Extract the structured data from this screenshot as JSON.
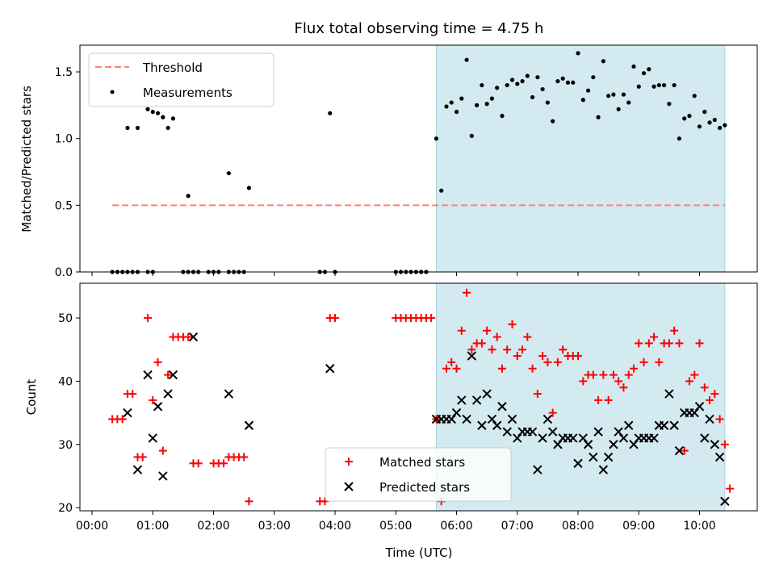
{
  "chart_data": {
    "title": "Flux total observing time = 4.75 h",
    "xlabel": "Time (UTC)",
    "x_ticks": [
      "00:00",
      "01:00",
      "02:00",
      "03:00",
      "04:00",
      "05:00",
      "06:00",
      "07:00",
      "08:00",
      "09:00",
      "10:00"
    ],
    "x_range": [
      "23:48",
      "10:57"
    ],
    "shaded_interval": [
      "05:40",
      "10:25"
    ],
    "shade_color": "#d4eaf1",
    "top": {
      "type": "scatter",
      "ylabel": "Matched/Predicted stars",
      "ylim": [
        0,
        1.7
      ],
      "yticks": [
        "0.0",
        "0.5",
        "1.0",
        "1.5"
      ],
      "legend": {
        "placement": "top-left",
        "entries": [
          "Threshold",
          "Measurements"
        ]
      },
      "threshold": {
        "name": "Threshold",
        "value": 0.5,
        "x_start": "00:20",
        "x_end": "10:25",
        "color": "#ff7f7f"
      },
      "measurements": {
        "name": "Measurements",
        "color": "#000000",
        "points": [
          [
            "00:20",
            0
          ],
          [
            "00:25",
            0
          ],
          [
            "00:30",
            0
          ],
          [
            "00:35",
            0
          ],
          [
            "00:40",
            0
          ],
          [
            "00:45",
            0
          ],
          [
            "00:55",
            0
          ],
          [
            "01:00",
            0
          ],
          [
            "01:30",
            0
          ],
          [
            "01:35",
            0
          ],
          [
            "01:40",
            0
          ],
          [
            "01:45",
            0
          ],
          [
            "01:55",
            0
          ],
          [
            "02:00",
            0
          ],
          [
            "02:05",
            0
          ],
          [
            "02:15",
            0
          ],
          [
            "02:20",
            0
          ],
          [
            "02:25",
            0
          ],
          [
            "02:30",
            0
          ],
          [
            "03:45",
            0
          ],
          [
            "03:50",
            0
          ],
          [
            "04:00",
            0
          ],
          [
            "05:00",
            0
          ],
          [
            "05:05",
            0
          ],
          [
            "05:10",
            0
          ],
          [
            "05:15",
            0
          ],
          [
            "05:20",
            0
          ],
          [
            "05:25",
            0
          ],
          [
            "05:30",
            0
          ],
          [
            "00:35",
            1.08
          ],
          [
            "00:45",
            1.08
          ],
          [
            "00:55",
            1.22
          ],
          [
            "01:00",
            1.2
          ],
          [
            "01:05",
            1.19
          ],
          [
            "01:10",
            1.16
          ],
          [
            "01:15",
            1.08
          ],
          [
            "01:20",
            1.15
          ],
          [
            "01:35",
            0.57
          ],
          [
            "02:15",
            0.74
          ],
          [
            "02:35",
            0.63
          ],
          [
            "03:55",
            1.19
          ],
          [
            "05:40",
            1.0
          ],
          [
            "05:45",
            0.61
          ],
          [
            "05:50",
            1.24
          ],
          [
            "05:55",
            1.27
          ],
          [
            "06:00",
            1.2
          ],
          [
            "06:05",
            1.3
          ],
          [
            "06:10",
            1.59
          ],
          [
            "06:15",
            1.02
          ],
          [
            "06:20",
            1.25
          ],
          [
            "06:25",
            1.4
          ],
          [
            "06:30",
            1.26
          ],
          [
            "06:35",
            1.3
          ],
          [
            "06:40",
            1.38
          ],
          [
            "06:45",
            1.17
          ],
          [
            "06:50",
            1.4
          ],
          [
            "06:55",
            1.44
          ],
          [
            "07:00",
            1.41
          ],
          [
            "07:05",
            1.43
          ],
          [
            "07:10",
            1.47
          ],
          [
            "07:15",
            1.31
          ],
          [
            "07:20",
            1.46
          ],
          [
            "07:25",
            1.37
          ],
          [
            "07:30",
            1.27
          ],
          [
            "07:35",
            1.13
          ],
          [
            "07:40",
            1.43
          ],
          [
            "07:45",
            1.45
          ],
          [
            "07:50",
            1.42
          ],
          [
            "07:55",
            1.42
          ],
          [
            "08:00",
            1.64
          ],
          [
            "08:05",
            1.29
          ],
          [
            "08:10",
            1.36
          ],
          [
            "08:15",
            1.46
          ],
          [
            "08:20",
            1.16
          ],
          [
            "08:25",
            1.58
          ],
          [
            "08:30",
            1.32
          ],
          [
            "08:35",
            1.33
          ],
          [
            "08:40",
            1.22
          ],
          [
            "08:45",
            1.33
          ],
          [
            "08:50",
            1.27
          ],
          [
            "08:55",
            1.54
          ],
          [
            "09:00",
            1.39
          ],
          [
            "09:05",
            1.49
          ],
          [
            "09:10",
            1.52
          ],
          [
            "09:15",
            1.39
          ],
          [
            "09:20",
            1.4
          ],
          [
            "09:25",
            1.4
          ],
          [
            "09:30",
            1.26
          ],
          [
            "09:35",
            1.4
          ],
          [
            "09:40",
            1.0
          ],
          [
            "09:45",
            1.15
          ],
          [
            "09:50",
            1.17
          ],
          [
            "09:55",
            1.32
          ],
          [
            "10:00",
            1.09
          ],
          [
            "10:05",
            1.2
          ],
          [
            "10:10",
            1.12
          ],
          [
            "10:15",
            1.14
          ],
          [
            "10:20",
            1.08
          ],
          [
            "10:25",
            1.1
          ]
        ]
      }
    },
    "bottom": {
      "type": "scatter",
      "ylabel": "Count",
      "ylim": [
        19.5,
        55.5
      ],
      "yticks": [
        "20",
        "30",
        "40",
        "50"
      ],
      "legend": {
        "placement": "lower-center",
        "entries": [
          "Matched stars",
          "Predicted stars"
        ]
      },
      "matched": {
        "name": "Matched stars",
        "color": "#ff0000",
        "marker": "plus",
        "points": [
          [
            "00:20",
            34
          ],
          [
            "00:25",
            34
          ],
          [
            "00:30",
            34
          ],
          [
            "00:35",
            38
          ],
          [
            "00:40",
            38
          ],
          [
            "00:45",
            28
          ],
          [
            "00:50",
            28
          ],
          [
            "00:55",
            50
          ],
          [
            "01:00",
            37
          ],
          [
            "01:05",
            43
          ],
          [
            "01:10",
            29
          ],
          [
            "01:15",
            41
          ],
          [
            "01:20",
            47
          ],
          [
            "01:25",
            47
          ],
          [
            "01:30",
            47
          ],
          [
            "01:35",
            47
          ],
          [
            "01:40",
            27
          ],
          [
            "01:45",
            27
          ],
          [
            "02:00",
            27
          ],
          [
            "02:05",
            27
          ],
          [
            "02:10",
            27
          ],
          [
            "02:15",
            28
          ],
          [
            "02:20",
            28
          ],
          [
            "02:25",
            28
          ],
          [
            "02:30",
            28
          ],
          [
            "02:35",
            21
          ],
          [
            "03:45",
            21
          ],
          [
            "03:50",
            21
          ],
          [
            "03:55",
            50
          ],
          [
            "04:00",
            50
          ],
          [
            "05:00",
            50
          ],
          [
            "05:05",
            50
          ],
          [
            "05:10",
            50
          ],
          [
            "05:15",
            50
          ],
          [
            "05:20",
            50
          ],
          [
            "05:25",
            50
          ],
          [
            "05:30",
            50
          ],
          [
            "05:35",
            50
          ],
          [
            "05:40",
            34
          ],
          [
            "05:45",
            21
          ],
          [
            "05:50",
            42
          ],
          [
            "05:55",
            43
          ],
          [
            "06:00",
            42
          ],
          [
            "06:05",
            48
          ],
          [
            "06:10",
            54
          ],
          [
            "06:15",
            45
          ],
          [
            "06:20",
            46
          ],
          [
            "06:25",
            46
          ],
          [
            "06:30",
            48
          ],
          [
            "06:35",
            45
          ],
          [
            "06:40",
            47
          ],
          [
            "06:45",
            42
          ],
          [
            "06:50",
            45
          ],
          [
            "06:55",
            49
          ],
          [
            "07:00",
            44
          ],
          [
            "07:05",
            45
          ],
          [
            "07:10",
            47
          ],
          [
            "07:15",
            42
          ],
          [
            "07:20",
            38
          ],
          [
            "07:25",
            44
          ],
          [
            "07:30",
            43
          ],
          [
            "07:35",
            35
          ],
          [
            "07:40",
            43
          ],
          [
            "07:45",
            45
          ],
          [
            "07:50",
            44
          ],
          [
            "07:55",
            44
          ],
          [
            "08:00",
            44
          ],
          [
            "08:05",
            40
          ],
          [
            "08:10",
            41
          ],
          [
            "08:15",
            41
          ],
          [
            "08:20",
            37
          ],
          [
            "08:25",
            41
          ],
          [
            "08:30",
            37
          ],
          [
            "08:35",
            41
          ],
          [
            "08:40",
            40
          ],
          [
            "08:45",
            39
          ],
          [
            "08:50",
            41
          ],
          [
            "08:55",
            42
          ],
          [
            "09:00",
            46
          ],
          [
            "09:05",
            43
          ],
          [
            "09:10",
            46
          ],
          [
            "09:15",
            47
          ],
          [
            "09:20",
            43
          ],
          [
            "09:25",
            46
          ],
          [
            "09:30",
            46
          ],
          [
            "09:35",
            48
          ],
          [
            "09:40",
            46
          ],
          [
            "09:45",
            29
          ],
          [
            "09:50",
            40
          ],
          [
            "09:55",
            41
          ],
          [
            "10:00",
            46
          ],
          [
            "10:05",
            39
          ],
          [
            "10:10",
            37
          ],
          [
            "10:15",
            38
          ],
          [
            "10:20",
            34
          ],
          [
            "10:25",
            30
          ],
          [
            "10:30",
            23
          ]
        ]
      },
      "predicted": {
        "name": "Predicted stars",
        "color": "#000000",
        "marker": "x",
        "points": [
          [
            "00:35",
            35
          ],
          [
            "00:45",
            26
          ],
          [
            "00:55",
            41
          ],
          [
            "01:00",
            31
          ],
          [
            "01:05",
            36
          ],
          [
            "01:10",
            25
          ],
          [
            "01:15",
            38
          ],
          [
            "01:20",
            41
          ],
          [
            "01:40",
            47
          ],
          [
            "02:15",
            38
          ],
          [
            "02:35",
            33
          ],
          [
            "03:55",
            42
          ],
          [
            "05:40",
            34
          ],
          [
            "05:45",
            34
          ],
          [
            "05:50",
            34
          ],
          [
            "05:55",
            34
          ],
          [
            "06:00",
            35
          ],
          [
            "06:05",
            37
          ],
          [
            "06:10",
            34
          ],
          [
            "06:15",
            44
          ],
          [
            "06:20",
            37
          ],
          [
            "06:25",
            33
          ],
          [
            "06:30",
            38
          ],
          [
            "06:35",
            34
          ],
          [
            "06:40",
            33
          ],
          [
            "06:45",
            36
          ],
          [
            "06:50",
            32
          ],
          [
            "06:55",
            34
          ],
          [
            "07:00",
            31
          ],
          [
            "07:05",
            32
          ],
          [
            "07:10",
            32
          ],
          [
            "07:15",
            32
          ],
          [
            "07:20",
            26
          ],
          [
            "07:25",
            31
          ],
          [
            "07:30",
            34
          ],
          [
            "07:35",
            32
          ],
          [
            "07:40",
            30
          ],
          [
            "07:45",
            31
          ],
          [
            "07:50",
            31
          ],
          [
            "07:55",
            31
          ],
          [
            "08:00",
            27
          ],
          [
            "08:05",
            31
          ],
          [
            "08:10",
            30
          ],
          [
            "08:15",
            28
          ],
          [
            "08:20",
            32
          ],
          [
            "08:25",
            26
          ],
          [
            "08:30",
            28
          ],
          [
            "08:35",
            30
          ],
          [
            "08:40",
            32
          ],
          [
            "08:45",
            31
          ],
          [
            "08:50",
            33
          ],
          [
            "08:55",
            30
          ],
          [
            "09:00",
            31
          ],
          [
            "09:05",
            31
          ],
          [
            "09:10",
            31
          ],
          [
            "09:15",
            31
          ],
          [
            "09:20",
            33
          ],
          [
            "09:25",
            33
          ],
          [
            "09:30",
            38
          ],
          [
            "09:35",
            33
          ],
          [
            "09:40",
            29
          ],
          [
            "09:45",
            35
          ],
          [
            "09:50",
            35
          ],
          [
            "09:55",
            35
          ],
          [
            "10:00",
            36
          ],
          [
            "10:05",
            31
          ],
          [
            "10:10",
            34
          ],
          [
            "10:15",
            30
          ],
          [
            "10:20",
            28
          ],
          [
            "10:25",
            21
          ]
        ]
      }
    }
  }
}
